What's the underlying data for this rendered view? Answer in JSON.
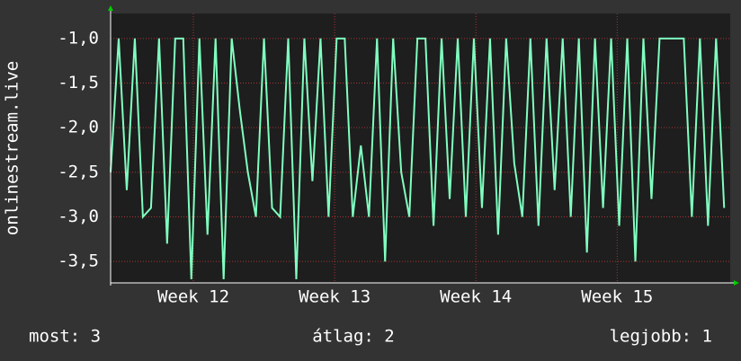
{
  "chart_data": {
    "type": "line",
    "y_label": "onlinestream.live",
    "x": [
      0,
      0.4,
      0.8,
      1.2,
      1.6,
      2,
      2.4,
      2.8,
      3.2,
      3.6,
      4,
      4.4,
      4.8,
      5.2,
      5.6,
      6,
      6.4,
      6.8,
      7.2,
      7.6,
      8,
      8.4,
      8.8,
      9.2,
      9.6,
      10,
      10.4,
      10.8,
      11.2,
      11.6,
      12,
      12.4,
      12.8,
      13.2,
      13.6,
      14,
      14.4,
      14.8,
      15.2,
      15.6,
      16,
      16.4,
      16.8,
      17.2,
      17.6,
      18,
      18.4,
      18.8,
      19.2,
      19.6,
      20,
      20.4,
      20.8,
      21.2,
      21.6,
      22,
      22.4,
      22.8,
      23.2,
      23.6,
      24,
      24.4,
      24.8,
      25.2,
      25.6,
      26,
      26.4,
      26.8,
      27.2,
      27.6,
      28,
      28.4,
      28.8,
      29.2,
      29.6,
      30,
      30.4
    ],
    "series": [
      {
        "color": "#80ffc0",
        "values": [
          -2.5,
          -1,
          -2.7,
          -1,
          -3,
          -2.9,
          -1,
          -3.3,
          -1,
          -1,
          -3.7,
          -1,
          -3.2,
          -1,
          -3.7,
          -1,
          -1.8,
          -2.5,
          -3,
          -1,
          -2.9,
          -3,
          -1,
          -3.7,
          -1,
          -2.6,
          -1,
          -3,
          -1,
          -1,
          -3,
          -2.2,
          -3,
          -1,
          -3.5,
          -1,
          -2.5,
          -3,
          -1,
          -1,
          -3.1,
          -1,
          -2.8,
          -1,
          -3,
          -1,
          -2.9,
          -1,
          -3.2,
          -1,
          -2.4,
          -3,
          -1,
          -3.1,
          -1,
          -2.7,
          -1,
          -3,
          -1,
          -3.4,
          -1,
          -2.9,
          -1,
          -3.1,
          -1,
          -3.5,
          -1,
          -2.8,
          -1,
          -1,
          -1,
          -1,
          -3,
          -1,
          -3.1,
          -1,
          -2.9
        ]
      }
    ],
    "xlim": [
      0,
      30.7
    ],
    "xticks": [
      {
        "value": 4.1,
        "label": "Week 12"
      },
      {
        "value": 11.1,
        "label": "Week 13"
      },
      {
        "value": 18.1,
        "label": "Week 14"
      },
      {
        "value": 25.1,
        "label": "Week 15"
      }
    ],
    "ylim": [
      -3.74,
      -0.72
    ],
    "yticks": [
      {
        "value": -3.5,
        "label": "-3,5"
      },
      {
        "value": -3,
        "label": "-3,0"
      },
      {
        "value": -2.5,
        "label": "-2,5"
      },
      {
        "value": -2,
        "label": "-2,0"
      },
      {
        "value": -1.5,
        "label": "-1,5"
      },
      {
        "value": -1,
        "label": "-1,0"
      }
    ],
    "grid": true,
    "footer": [
      "most: 3",
      "átlag: 2",
      "legjobb: 1"
    ]
  }
}
